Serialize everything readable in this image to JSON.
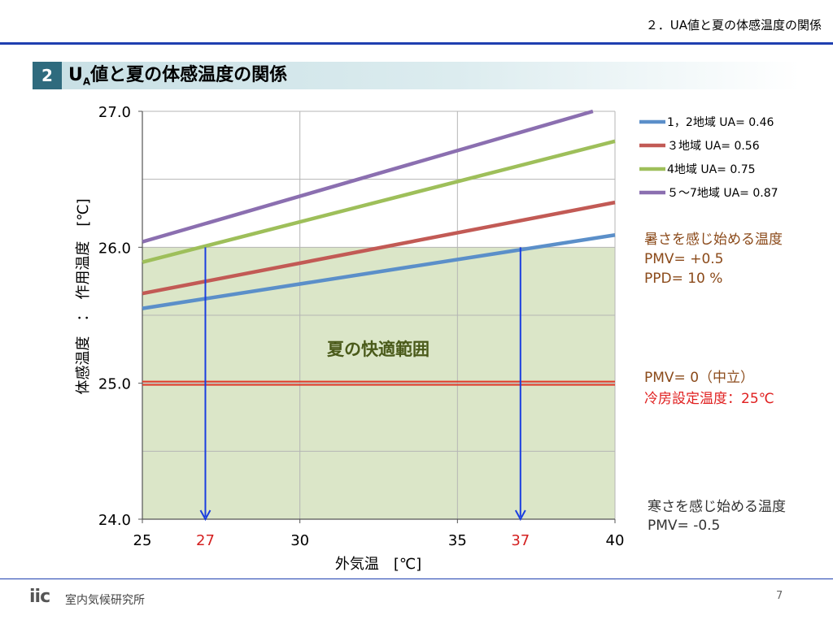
{
  "header": {
    "title": "２．UA値と夏の体感温度の関係"
  },
  "section": {
    "number": "2",
    "title_pre": "U",
    "title_sub": "A",
    "title_post": "値と夏の体感温度の関係"
  },
  "chart_data": {
    "type": "line",
    "xlabel": "外気温　[℃]",
    "ylabel": "体感温度　：　作用温度　[℃]",
    "xlim": [
      25,
      40
    ],
    "ylim": [
      24.0,
      27.0
    ],
    "x_ticks": [
      "25",
      "30",
      "35",
      "40"
    ],
    "y_ticks": [
      "24.0",
      "25.0",
      "26.0",
      "27.0"
    ],
    "grid": true,
    "legend_position": "right",
    "series": [
      {
        "name": "1，2地域  UA= 0.46",
        "color": "#5b8fc9",
        "x": [
          25,
          40
        ],
        "y": [
          25.55,
          26.09
        ]
      },
      {
        "name": "３地域  UA= 0.56",
        "color": "#c25a55",
        "x": [
          25,
          40
        ],
        "y": [
          25.66,
          26.33
        ]
      },
      {
        "name": "4地域  UA= 0.75",
        "color": "#9ebf5a",
        "x": [
          25,
          40
        ],
        "y": [
          25.89,
          26.78
        ]
      },
      {
        "name": "５〜7地域  UA= 0.87",
        "color": "#8b6fb0",
        "x": [
          25,
          39.3
        ],
        "y": [
          26.04,
          27.0
        ]
      }
    ],
    "comfort_zone": {
      "x": [
        25,
        40
      ],
      "y": [
        24.0,
        26.0
      ],
      "label": "夏の快適範囲",
      "color": "#dbe6c8"
    },
    "reference_line": {
      "y": 25.0,
      "color": "#e03a2a"
    },
    "markers": [
      {
        "x": 27,
        "from_y": 26.0,
        "to_y": 24.0,
        "label": "27",
        "color": "#1a3ee0"
      },
      {
        "x": 37,
        "from_y": 26.0,
        "to_y": 24.0,
        "label": "37",
        "color": "#1a3ee0"
      }
    ],
    "annotations": [
      {
        "lines": [
          "暑さを感じ始める温度",
          "PMV= +0.5",
          "PPD= 10 %"
        ],
        "color": "#8b4a1a"
      },
      {
        "lines": [
          "PMV= 0（中立）"
        ],
        "color": "#8b4a1a"
      },
      {
        "lines": [
          "冷房設定温度：25℃"
        ],
        "color": "#e02020"
      },
      {
        "lines": [
          "寒さを感じ始める温度",
          "PMV= -0.5"
        ],
        "color": "#333333"
      }
    ]
  },
  "footer": {
    "logo": "iic",
    "org": "室内気候研究所",
    "page": "7"
  }
}
